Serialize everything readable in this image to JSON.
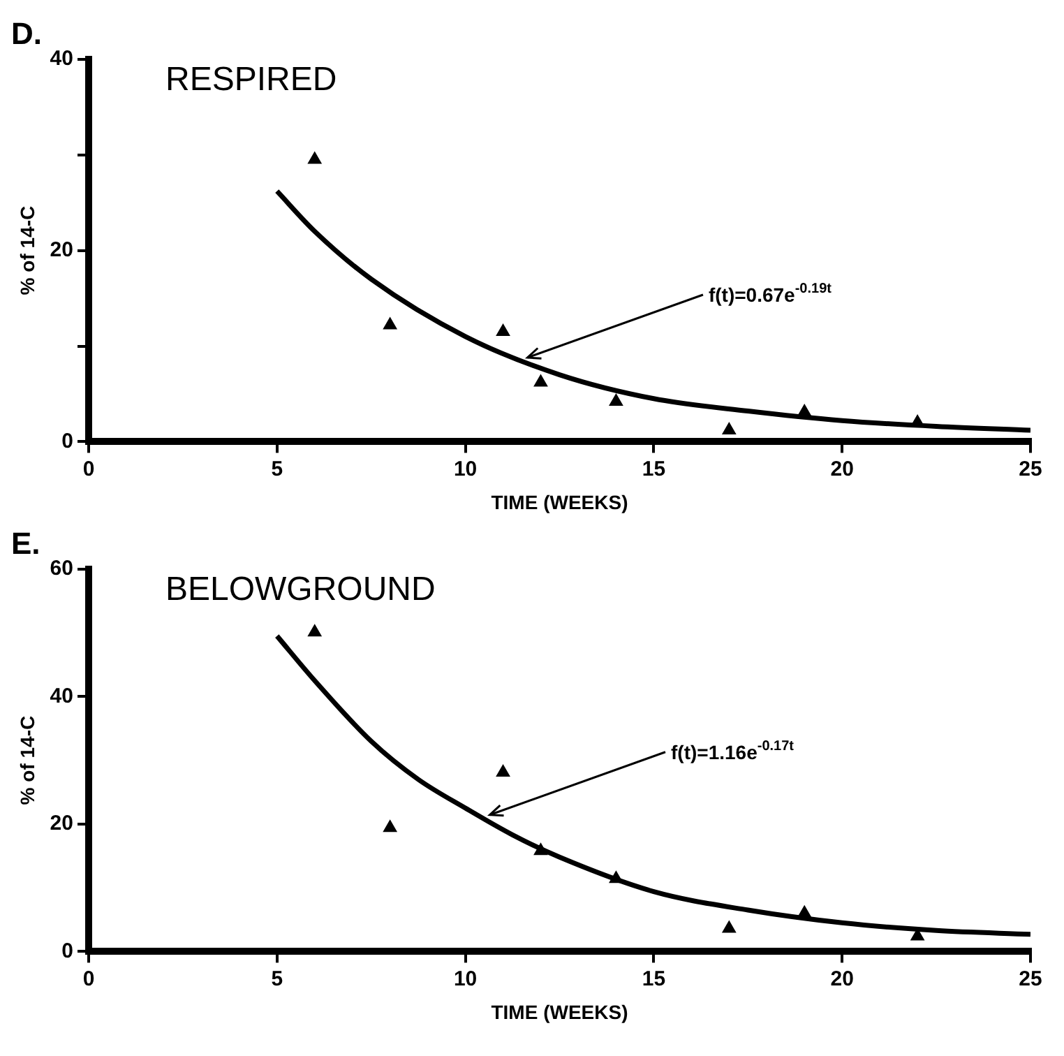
{
  "chart_data": [
    {
      "type": "scatter",
      "title": "D.",
      "xlabel": "TIME (WEEKS)",
      "ylabel": "% of 14-C",
      "xlim": [
        0,
        25
      ],
      "xticks": [
        0,
        5,
        10,
        15,
        20,
        25
      ],
      "ylim": [
        0,
        40
      ],
      "yticks": [
        0,
        {
          "value": 10,
          "label": null
        },
        20,
        {
          "value": 30,
          "label": null
        },
        40
      ],
      "grid": false,
      "legend": false,
      "annotations": [
        "RESPIRED",
        {
          "text": "f(t)=0.67e$^{-0.19t}$",
          "x": 11.5,
          "y": 8.5
        }
      ],
      "series": [
        {
          "color": "#000000",
          "marker": "triangle",
          "x": [
            6,
            8,
            11,
            12,
            14,
            17,
            19,
            22
          ],
          "values": [
            29.5,
            12.2,
            11.5,
            6.2,
            4.2,
            1.2,
            3.1,
            2.0
          ]
        },
        {
          "type": "line",
          "color": "#000000",
          "marker": "none",
          "line_style": "solid",
          "x": [
            5,
            6,
            7.5,
            10,
            12.5,
            15,
            17.5,
            20,
            22.5,
            25
          ],
          "values": [
            26.2,
            22,
            17,
            11,
            7,
            4.5,
            3.2,
            2.2,
            1.6,
            1.2
          ]
        }
      ]
    },
    {
      "type": "scatter",
      "title": "E.",
      "xlabel": "TIME (WEEKS)",
      "ylabel": "% of 14-C",
      "xlim": [
        0,
        25
      ],
      "xticks": [
        0,
        5,
        10,
        15,
        20,
        25
      ],
      "ylim": [
        0,
        60
      ],
      "yticks": [
        0,
        20,
        40,
        60
      ],
      "grid": false,
      "legend": false,
      "annotations": [
        "BELOWGROUND",
        {
          "text": "f(t)=1.16e$^{-0.17t}$",
          "x": 10.5,
          "y": 21
        }
      ],
      "series": [
        {
          "color": "#000000",
          "marker": "triangle",
          "x": [
            6,
            8,
            11,
            12,
            14,
            17,
            19,
            22
          ],
          "values": [
            50.1,
            19.4,
            28.1,
            15.8,
            11.4,
            3.6,
            6.0,
            2.4
          ]
        },
        {
          "type": "line",
          "color": "#000000",
          "marker": "none",
          "line_style": "solid",
          "x": [
            5,
            6,
            7.5,
            8.75,
            10,
            11.25,
            12.5,
            15,
            17.5,
            20,
            22.5,
            25
          ],
          "values": [
            49.5,
            42.5,
            33,
            27,
            22.5,
            18.3,
            14.8,
            9.4,
            6.5,
            4.5,
            3.3,
            2.7
          ]
        }
      ]
    }
  ]
}
